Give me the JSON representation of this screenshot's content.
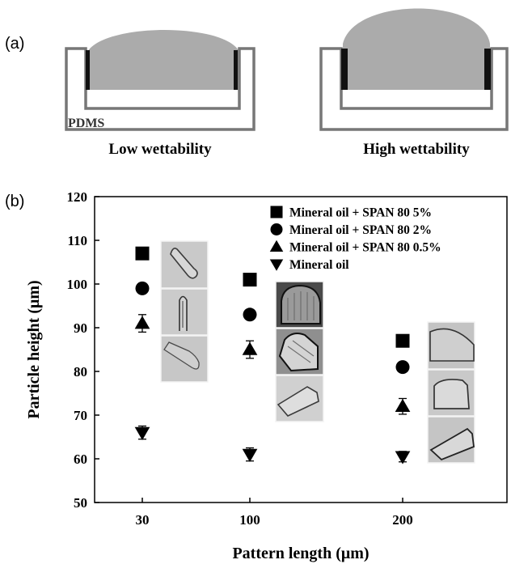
{
  "panel_a": {
    "label": "(a)",
    "pdms_label": "PDMS",
    "left_caption": "Low wettability",
    "right_caption": "High wettability",
    "colors": {
      "droplet": "#ababab",
      "frame": "#777777",
      "wall": "#111111"
    }
  },
  "panel_b": {
    "label": "(b)"
  },
  "chart_data": {
    "type": "scatter",
    "x_type": "categorical",
    "categories": [
      "30",
      "100",
      "200"
    ],
    "xlabel": "Pattern length (μm)",
    "ylabel": "Particle height (μm)",
    "ylim": [
      50,
      120
    ],
    "yticks": [
      50,
      60,
      70,
      80,
      90,
      100,
      110,
      120
    ],
    "grid": false,
    "legend_position": "top-right",
    "series": [
      {
        "name": "Mineral oil + SPAN 80  5%",
        "marker": "square",
        "values": [
          107,
          101,
          87
        ],
        "errors": [
          1.2,
          0.6,
          0.5
        ]
      },
      {
        "name": "Mineral oil + SPAN 80  2%",
        "marker": "circle",
        "values": [
          99,
          93,
          81
        ],
        "errors": [
          0.5,
          0.5,
          0.5
        ]
      },
      {
        "name": "Mineral oil + SPAN 80 0.5%",
        "marker": "triangle-up",
        "values": [
          91,
          85,
          72
        ],
        "errors": [
          2,
          2,
          1.8
        ]
      },
      {
        "name": "Mineral oil",
        "marker": "triangle-down",
        "values": [
          66,
          61,
          60.5
        ],
        "errors": [
          1.5,
          1.5,
          1.2
        ]
      }
    ],
    "marker_color": "#000000"
  }
}
